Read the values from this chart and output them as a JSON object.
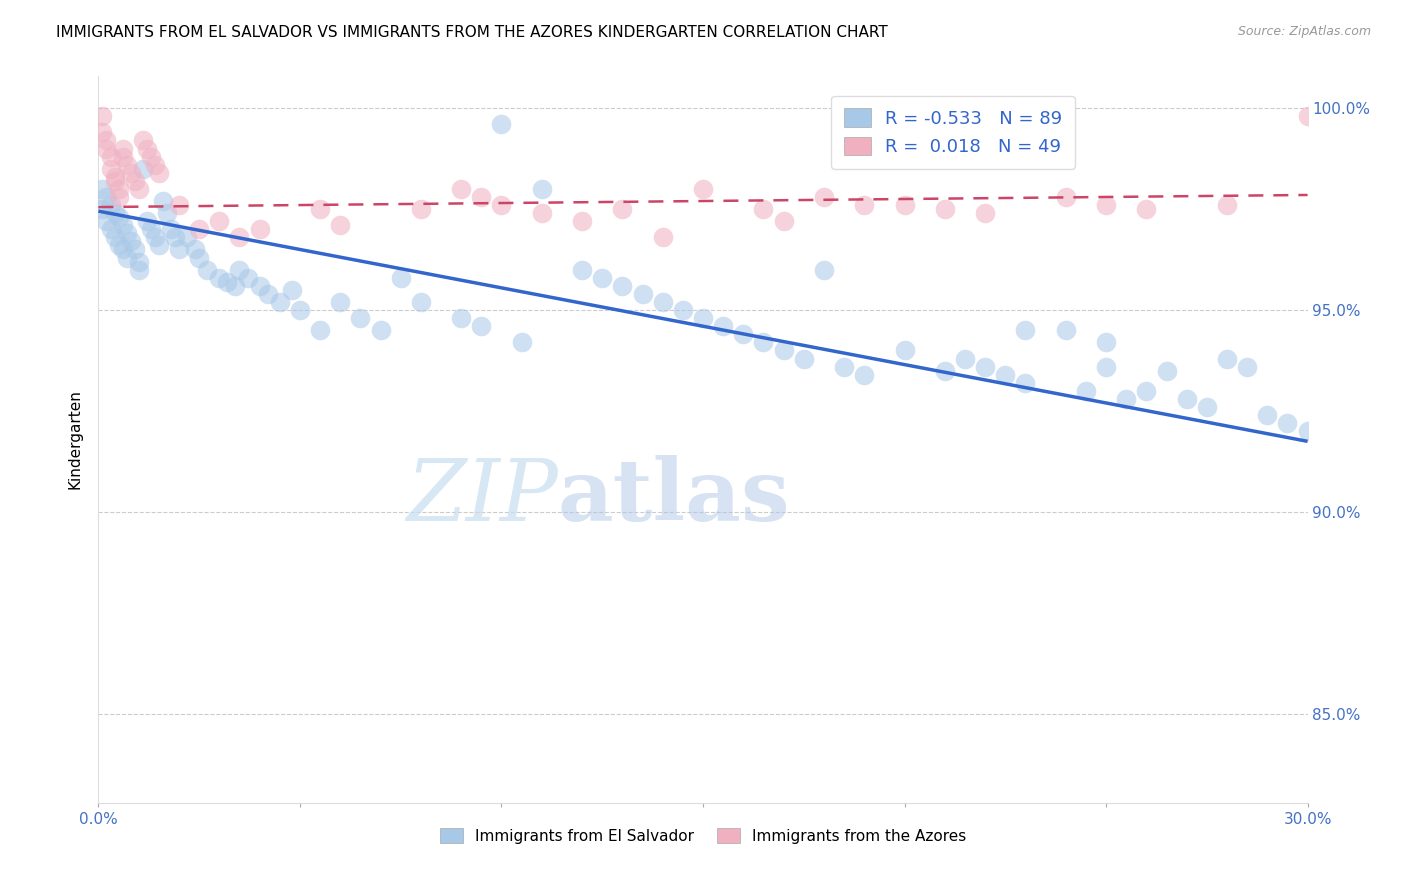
{
  "title": "IMMIGRANTS FROM EL SALVADOR VS IMMIGRANTS FROM THE AZORES KINDERGARTEN CORRELATION CHART",
  "source": "Source: ZipAtlas.com",
  "ylabel": "Kindergarten",
  "xmin": 0.0,
  "xmax": 0.3,
  "ymin": 0.828,
  "ymax": 1.008,
  "blue_scatter_x": [
    0.001,
    0.001,
    0.002,
    0.002,
    0.003,
    0.003,
    0.004,
    0.004,
    0.005,
    0.005,
    0.006,
    0.006,
    0.007,
    0.007,
    0.008,
    0.009,
    0.01,
    0.01,
    0.011,
    0.012,
    0.013,
    0.014,
    0.015,
    0.016,
    0.017,
    0.018,
    0.019,
    0.02,
    0.022,
    0.024,
    0.025,
    0.027,
    0.03,
    0.032,
    0.034,
    0.035,
    0.037,
    0.04,
    0.042,
    0.045,
    0.048,
    0.05,
    0.055,
    0.06,
    0.065,
    0.07,
    0.075,
    0.08,
    0.09,
    0.095,
    0.1,
    0.105,
    0.11,
    0.12,
    0.125,
    0.13,
    0.135,
    0.14,
    0.145,
    0.15,
    0.155,
    0.16,
    0.165,
    0.17,
    0.175,
    0.18,
    0.185,
    0.19,
    0.2,
    0.21,
    0.215,
    0.22,
    0.225,
    0.23,
    0.24,
    0.245,
    0.25,
    0.255,
    0.26,
    0.265,
    0.27,
    0.275,
    0.28,
    0.285,
    0.29,
    0.295,
    0.3,
    0.25,
    0.23
  ],
  "blue_scatter_y": [
    0.98,
    0.975,
    0.978,
    0.972,
    0.976,
    0.97,
    0.974,
    0.968,
    0.973,
    0.966,
    0.971,
    0.965,
    0.969,
    0.963,
    0.967,
    0.965,
    0.962,
    0.96,
    0.985,
    0.972,
    0.97,
    0.968,
    0.966,
    0.977,
    0.974,
    0.97,
    0.968,
    0.965,
    0.968,
    0.965,
    0.963,
    0.96,
    0.958,
    0.957,
    0.956,
    0.96,
    0.958,
    0.956,
    0.954,
    0.952,
    0.955,
    0.95,
    0.945,
    0.952,
    0.948,
    0.945,
    0.958,
    0.952,
    0.948,
    0.946,
    0.996,
    0.942,
    0.98,
    0.96,
    0.958,
    0.956,
    0.954,
    0.952,
    0.95,
    0.948,
    0.946,
    0.944,
    0.942,
    0.94,
    0.938,
    0.96,
    0.936,
    0.934,
    0.94,
    0.935,
    0.938,
    0.936,
    0.934,
    0.932,
    0.945,
    0.93,
    0.942,
    0.928,
    0.93,
    0.935,
    0.928,
    0.926,
    0.938,
    0.936,
    0.924,
    0.922,
    0.92,
    0.936,
    0.945
  ],
  "pink_scatter_x": [
    0.001,
    0.001,
    0.002,
    0.002,
    0.003,
    0.003,
    0.004,
    0.004,
    0.005,
    0.005,
    0.006,
    0.006,
    0.007,
    0.008,
    0.009,
    0.01,
    0.011,
    0.012,
    0.013,
    0.014,
    0.015,
    0.02,
    0.025,
    0.03,
    0.035,
    0.04,
    0.055,
    0.06,
    0.08,
    0.09,
    0.095,
    0.1,
    0.11,
    0.12,
    0.13,
    0.14,
    0.15,
    0.165,
    0.17,
    0.18,
    0.19,
    0.2,
    0.21,
    0.22,
    0.24,
    0.25,
    0.26,
    0.28,
    0.3
  ],
  "pink_scatter_y": [
    0.998,
    0.994,
    0.992,
    0.99,
    0.988,
    0.985,
    0.983,
    0.982,
    0.98,
    0.978,
    0.99,
    0.988,
    0.986,
    0.984,
    0.982,
    0.98,
    0.992,
    0.99,
    0.988,
    0.986,
    0.984,
    0.976,
    0.97,
    0.972,
    0.968,
    0.97,
    0.975,
    0.971,
    0.975,
    0.98,
    0.978,
    0.976,
    0.974,
    0.972,
    0.975,
    0.968,
    0.98,
    0.975,
    0.972,
    0.978,
    0.976,
    0.976,
    0.975,
    0.974,
    0.978,
    0.976,
    0.975,
    0.976,
    0.998
  ],
  "blue_line_x": [
    0.0,
    0.3
  ],
  "blue_line_y": [
    0.9745,
    0.9175
  ],
  "pink_line_x": [
    0.0,
    0.3
  ],
  "pink_line_y": [
    0.9755,
    0.9785
  ],
  "blue_color": "#a8c8e8",
  "blue_line_color": "#3366cc",
  "pink_color": "#f0b0c0",
  "pink_line_color": "#cc4466",
  "legend_blue_R": "-0.533",
  "legend_blue_N": "89",
  "legend_pink_R": "0.018",
  "legend_pink_N": "49",
  "watermark_zip": "ZIP",
  "watermark_atlas": "atlas",
  "title_fontsize": 11,
  "tick_color": "#4472c4",
  "grid_color": "#cccccc",
  "yticks": [
    0.85,
    0.9,
    0.95,
    1.0
  ],
  "ytick_labels": [
    "85.0%",
    "90.0%",
    "95.0%",
    "100.0%"
  ]
}
